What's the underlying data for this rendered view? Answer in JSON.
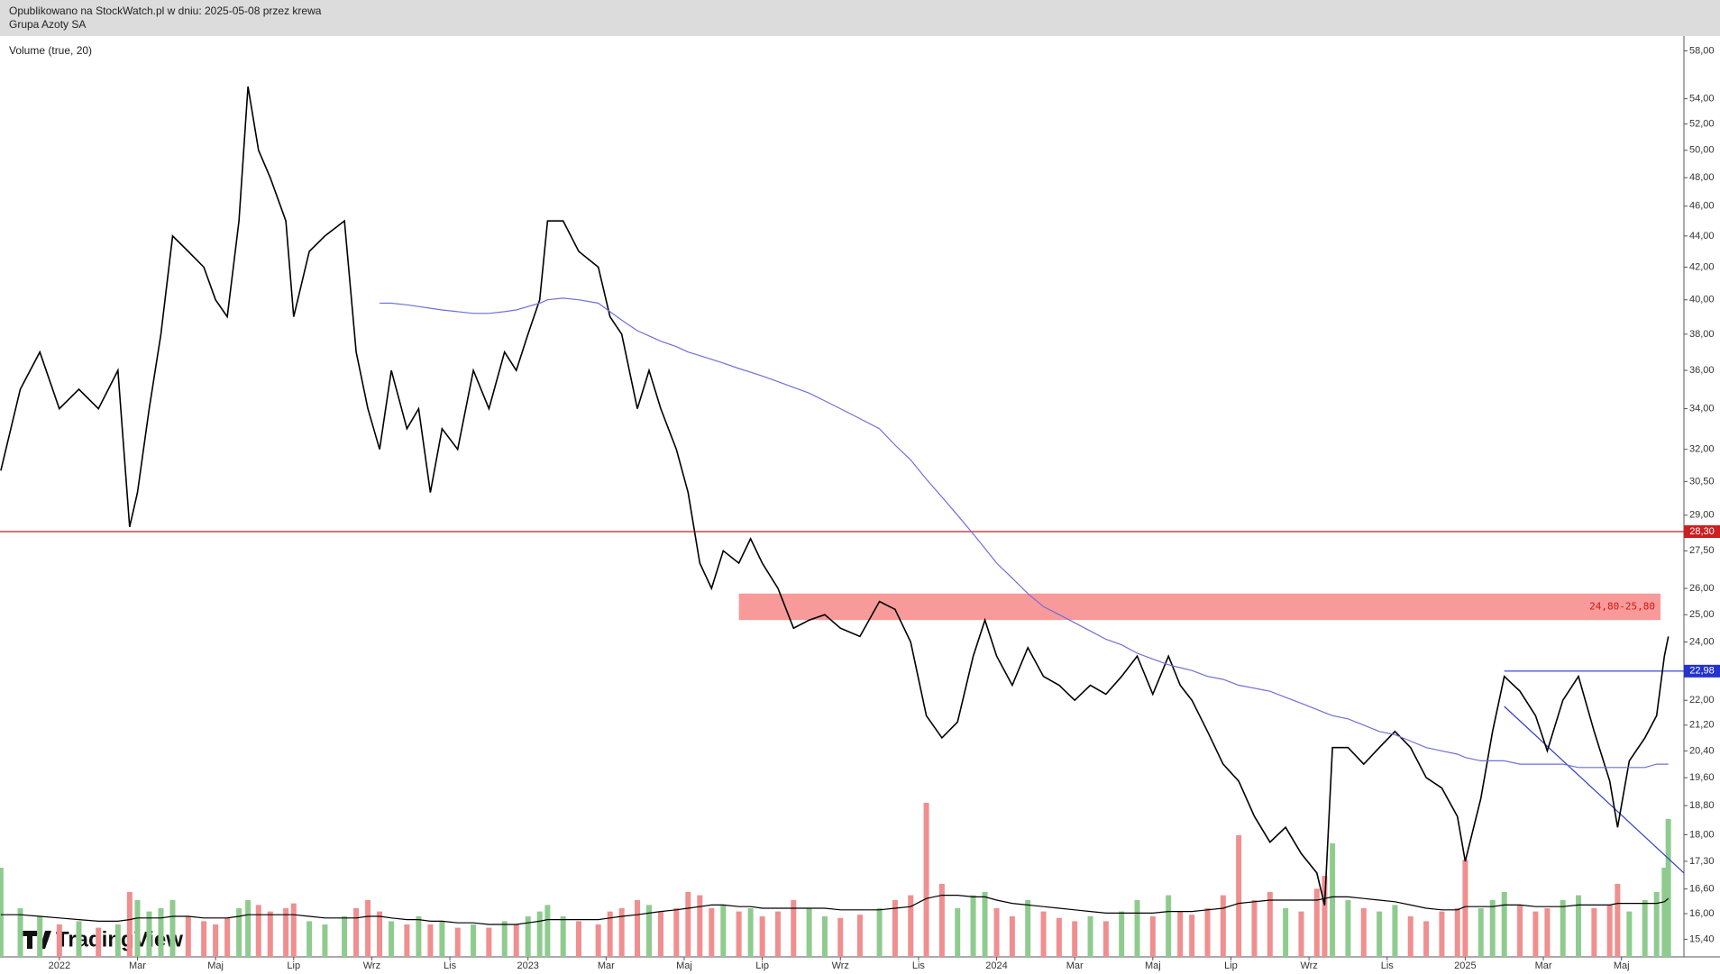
{
  "chart_data": {
    "type": "line",
    "subtitle": "Opublikowano na StockWatch.pl w dniu: 2025-05-08 przez krewa",
    "title": "Grupa Azoty SA",
    "indicator_label": "Volume (true, 20)",
    "logo": "TradingView",
    "log_scale": true,
    "xlim": [
      -1.52,
      41.6
    ],
    "ylim": [
      15.0,
      59.3
    ],
    "xticks": [
      {
        "value": 0,
        "label": "2022"
      },
      {
        "value": 2,
        "label": "Mar"
      },
      {
        "value": 4,
        "label": "Maj"
      },
      {
        "value": 6,
        "label": "Lip"
      },
      {
        "value": 8,
        "label": "Wrz"
      },
      {
        "value": 10,
        "label": "Lis"
      },
      {
        "value": 12,
        "label": "2023"
      },
      {
        "value": 14,
        "label": "Mar"
      },
      {
        "value": 16,
        "label": "Maj"
      },
      {
        "value": 18,
        "label": "Lip"
      },
      {
        "value": 20,
        "label": "Wrz"
      },
      {
        "value": 22,
        "label": "Lis"
      },
      {
        "value": 24,
        "label": "2024"
      },
      {
        "value": 26,
        "label": "Mar"
      },
      {
        "value": 28,
        "label": "Maj"
      },
      {
        "value": 30,
        "label": "Lip"
      },
      {
        "value": 32,
        "label": "Wrz"
      },
      {
        "value": 34,
        "label": "Lis"
      },
      {
        "value": 36,
        "label": "2025"
      },
      {
        "value": 38,
        "label": "Mar"
      },
      {
        "value": 40,
        "label": "Maj"
      }
    ],
    "yticks": [
      {
        "value": 58,
        "label": "58,00"
      },
      {
        "value": 54,
        "label": "54,00"
      },
      {
        "value": 52,
        "label": "52,00"
      },
      {
        "value": 50,
        "label": "50,00"
      },
      {
        "value": 48,
        "label": "48,00"
      },
      {
        "value": 46,
        "label": "46,00"
      },
      {
        "value": 44,
        "label": "44,00"
      },
      {
        "value": 42,
        "label": "42,00"
      },
      {
        "value": 40,
        "label": "40,00"
      },
      {
        "value": 38,
        "label": "38,00"
      },
      {
        "value": 36,
        "label": "36,00"
      },
      {
        "value": 34,
        "label": "34,00"
      },
      {
        "value": 32,
        "label": "32,00"
      },
      {
        "value": 30.5,
        "label": "30,50"
      },
      {
        "value": 29,
        "label": "29,00"
      },
      {
        "value": 27.5,
        "label": "27,50"
      },
      {
        "value": 26,
        "label": "26,00"
      },
      {
        "value": 25,
        "label": "25,00"
      },
      {
        "value": 24,
        "label": "24,00"
      },
      {
        "value": 22,
        "label": "22,00"
      },
      {
        "value": 21.2,
        "label": "21,20"
      },
      {
        "value": 20.4,
        "label": "20,40"
      },
      {
        "value": 19.6,
        "label": "19,60"
      },
      {
        "value": 18.8,
        "label": "18,80"
      },
      {
        "value": 18,
        "label": "18,00"
      },
      {
        "value": 17.3,
        "label": "17,30"
      },
      {
        "value": 16.6,
        "label": "16,60"
      },
      {
        "value": 16,
        "label": "16,00"
      },
      {
        "value": 15.4,
        "label": "15,40"
      }
    ],
    "x": [
      -1.5,
      -1.0,
      -0.5,
      0,
      0.5,
      1.0,
      1.5,
      1.8,
      2.0,
      2.3,
      2.6,
      2.9,
      3.3,
      3.7,
      4.0,
      4.3,
      4.6,
      4.83,
      5.1,
      5.4,
      5.8,
      6.0,
      6.4,
      6.8,
      7.3,
      7.6,
      7.9,
      8.2,
      8.5,
      8.9,
      9.2,
      9.5,
      9.8,
      10.2,
      10.6,
      11.0,
      11.4,
      11.7,
      12.0,
      12.3,
      12.5,
      12.9,
      13.3,
      13.8,
      14.1,
      14.4,
      14.8,
      15.1,
      15.4,
      15.8,
      16.1,
      16.4,
      16.7,
      17.0,
      17.4,
      17.7,
      18.0,
      18.4,
      18.8,
      19.2,
      19.6,
      20.0,
      20.5,
      21.0,
      21.4,
      21.8,
      22.2,
      22.6,
      23.0,
      23.4,
      23.7,
      24.0,
      24.4,
      24.8,
      25.2,
      25.6,
      26.0,
      26.4,
      26.8,
      27.2,
      27.6,
      28.0,
      28.4,
      28.7,
      29.0,
      29.4,
      29.8,
      30.2,
      30.6,
      31.0,
      31.4,
      31.8,
      32.2,
      32.4,
      32.6,
      33.0,
      33.4,
      33.8,
      34.2,
      34.6,
      35.0,
      35.4,
      35.8,
      36.0,
      36.4,
      36.7,
      37.0,
      37.4,
      37.8,
      38.1,
      38.5,
      38.9,
      39.3,
      39.7,
      39.9,
      40.2,
      40.6,
      40.9,
      41.1,
      41.2
    ],
    "series": [
      {
        "color": "#000000",
        "values": [
          31,
          35,
          37,
          34,
          35,
          34,
          36,
          28.5,
          30,
          34,
          38,
          44,
          43,
          42,
          40,
          39,
          45,
          55,
          50,
          48,
          45,
          39,
          43,
          44,
          45,
          37,
          34,
          32,
          36,
          33,
          34,
          30,
          33,
          32,
          36,
          34,
          37,
          36,
          38,
          40,
          45,
          45,
          43,
          42,
          39,
          38,
          34,
          36,
          34,
          32,
          30,
          27,
          26,
          27.5,
          27,
          28,
          27,
          26,
          24.5,
          24.8,
          25,
          24.5,
          24.2,
          25.5,
          25.2,
          24,
          21.5,
          20.8,
          21.3,
          23.5,
          24.8,
          23.5,
          22.5,
          23.8,
          22.8,
          22.5,
          22,
          22.5,
          22.2,
          22.8,
          23.5,
          22.2,
          23.5,
          22.5,
          22,
          21,
          20,
          19.5,
          18.5,
          17.8,
          18.2,
          17.5,
          17,
          16.2,
          20.5,
          20.5,
          20,
          20.5,
          21,
          20.5,
          19.6,
          19.3,
          18.5,
          17.3,
          19,
          21,
          22.8,
          22.3,
          21.5,
          20.4,
          22,
          22.8,
          21,
          19.5,
          18.2,
          20.1,
          20.8,
          21.5,
          23.5,
          24.2
        ]
      },
      {
        "color": "#6f6fd8",
        "values": [
          null,
          null,
          null,
          null,
          null,
          null,
          null,
          null,
          null,
          null,
          null,
          null,
          null,
          null,
          null,
          null,
          null,
          null,
          null,
          null,
          null,
          null,
          null,
          null,
          null,
          null,
          null,
          39.8,
          39.8,
          39.7,
          39.6,
          39.5,
          39.4,
          39.3,
          39.2,
          39.2,
          39.3,
          39.4,
          39.6,
          39.8,
          40.0,
          40.1,
          40.0,
          39.8,
          39.3,
          38.8,
          38.2,
          37.9,
          37.6,
          37.3,
          37.0,
          36.8,
          36.6,
          36.4,
          36.1,
          35.9,
          35.7,
          35.4,
          35.1,
          34.8,
          34.4,
          34.0,
          33.5,
          33.0,
          32.2,
          31.5,
          30.6,
          29.8,
          29.0,
          28.2,
          27.6,
          27.0,
          26.4,
          25.8,
          25.3,
          25.0,
          24.7,
          24.4,
          24.1,
          23.9,
          23.6,
          23.4,
          23.2,
          23.1,
          23.0,
          22.8,
          22.7,
          22.5,
          22.4,
          22.3,
          22.1,
          21.9,
          21.7,
          21.6,
          21.5,
          21.4,
          21.2,
          21.0,
          20.9,
          20.7,
          20.5,
          20.4,
          20.3,
          20.2,
          20.1,
          20.1,
          20.1,
          20.0,
          20.0,
          20.0,
          20.0,
          19.9,
          19.9,
          19.9,
          19.9,
          19.9,
          19.9,
          20.0,
          20.0,
          20.0
        ]
      }
    ],
    "volume": {
      "vlim": [
        0,
        100
      ],
      "up_color": "#8fcb8f",
      "down_color": "#ef8f8f",
      "values": [
        55,
        30,
        25,
        20,
        22,
        18,
        20,
        40,
        35,
        28,
        30,
        35,
        25,
        22,
        20,
        24,
        30,
        35,
        32,
        28,
        30,
        33,
        22,
        20,
        25,
        30,
        35,
        28,
        22,
        20,
        25,
        20,
        22,
        18,
        20,
        18,
        22,
        20,
        25,
        28,
        32,
        25,
        22,
        20,
        28,
        30,
        35,
        32,
        28,
        30,
        40,
        38,
        30,
        32,
        28,
        30,
        25,
        28,
        35,
        30,
        25,
        24,
        26,
        30,
        35,
        38,
        95,
        45,
        30,
        38,
        40,
        30,
        25,
        35,
        28,
        24,
        22,
        25,
        22,
        28,
        35,
        25,
        38,
        28,
        26,
        30,
        38,
        75,
        35,
        40,
        30,
        28,
        42,
        50,
        70,
        35,
        30,
        28,
        32,
        25,
        22,
        28,
        30,
        60,
        30,
        35,
        40,
        32,
        28,
        30,
        35,
        38,
        30,
        32,
        45,
        28,
        35,
        40,
        55,
        85
      ]
    },
    "volume_ma": {
      "color": "#000000",
      "values": [
        26,
        26,
        25,
        24,
        23,
        22,
        22,
        23,
        24,
        24,
        24,
        25,
        25,
        24,
        24,
        24,
        25,
        26,
        26,
        26,
        26,
        26,
        25,
        24,
        24,
        24,
        25,
        25,
        24,
        23,
        23,
        22,
        22,
        21,
        21,
        20,
        20,
        20,
        21,
        22,
        23,
        23,
        23,
        23,
        24,
        25,
        26,
        27,
        28,
        29,
        30,
        31,
        32,
        32,
        31,
        31,
        30,
        30,
        30,
        30,
        30,
        29,
        29,
        29,
        30,
        31,
        36,
        38,
        38,
        37,
        37,
        35,
        33,
        32,
        31,
        30,
        29,
        28,
        27,
        27,
        27,
        27,
        28,
        28,
        28,
        29,
        30,
        33,
        34,
        35,
        35,
        35,
        35,
        36,
        37,
        37,
        36,
        35,
        34,
        32,
        30,
        29,
        29,
        31,
        31,
        31,
        32,
        32,
        31,
        31,
        31,
        32,
        32,
        32,
        33,
        33,
        33,
        33,
        34,
        36
      ]
    },
    "levels": [
      {
        "value": 28.3,
        "label": "28,30",
        "color": "#cc1f1f"
      },
      {
        "value": 22.98,
        "label": "22,98",
        "color": "#2433cc",
        "x_start": 37.0
      }
    ],
    "zone": {
      "low": 24.8,
      "high": 25.8,
      "label": "24,80-25,80",
      "x_start": 17.4,
      "x_end": 41.0,
      "color": "#f89a9a"
    },
    "trendline": {
      "color": "#2f3fc8",
      "x": [
        37.0,
        41.6
      ],
      "values": [
        21.8,
        17.0
      ]
    }
  }
}
